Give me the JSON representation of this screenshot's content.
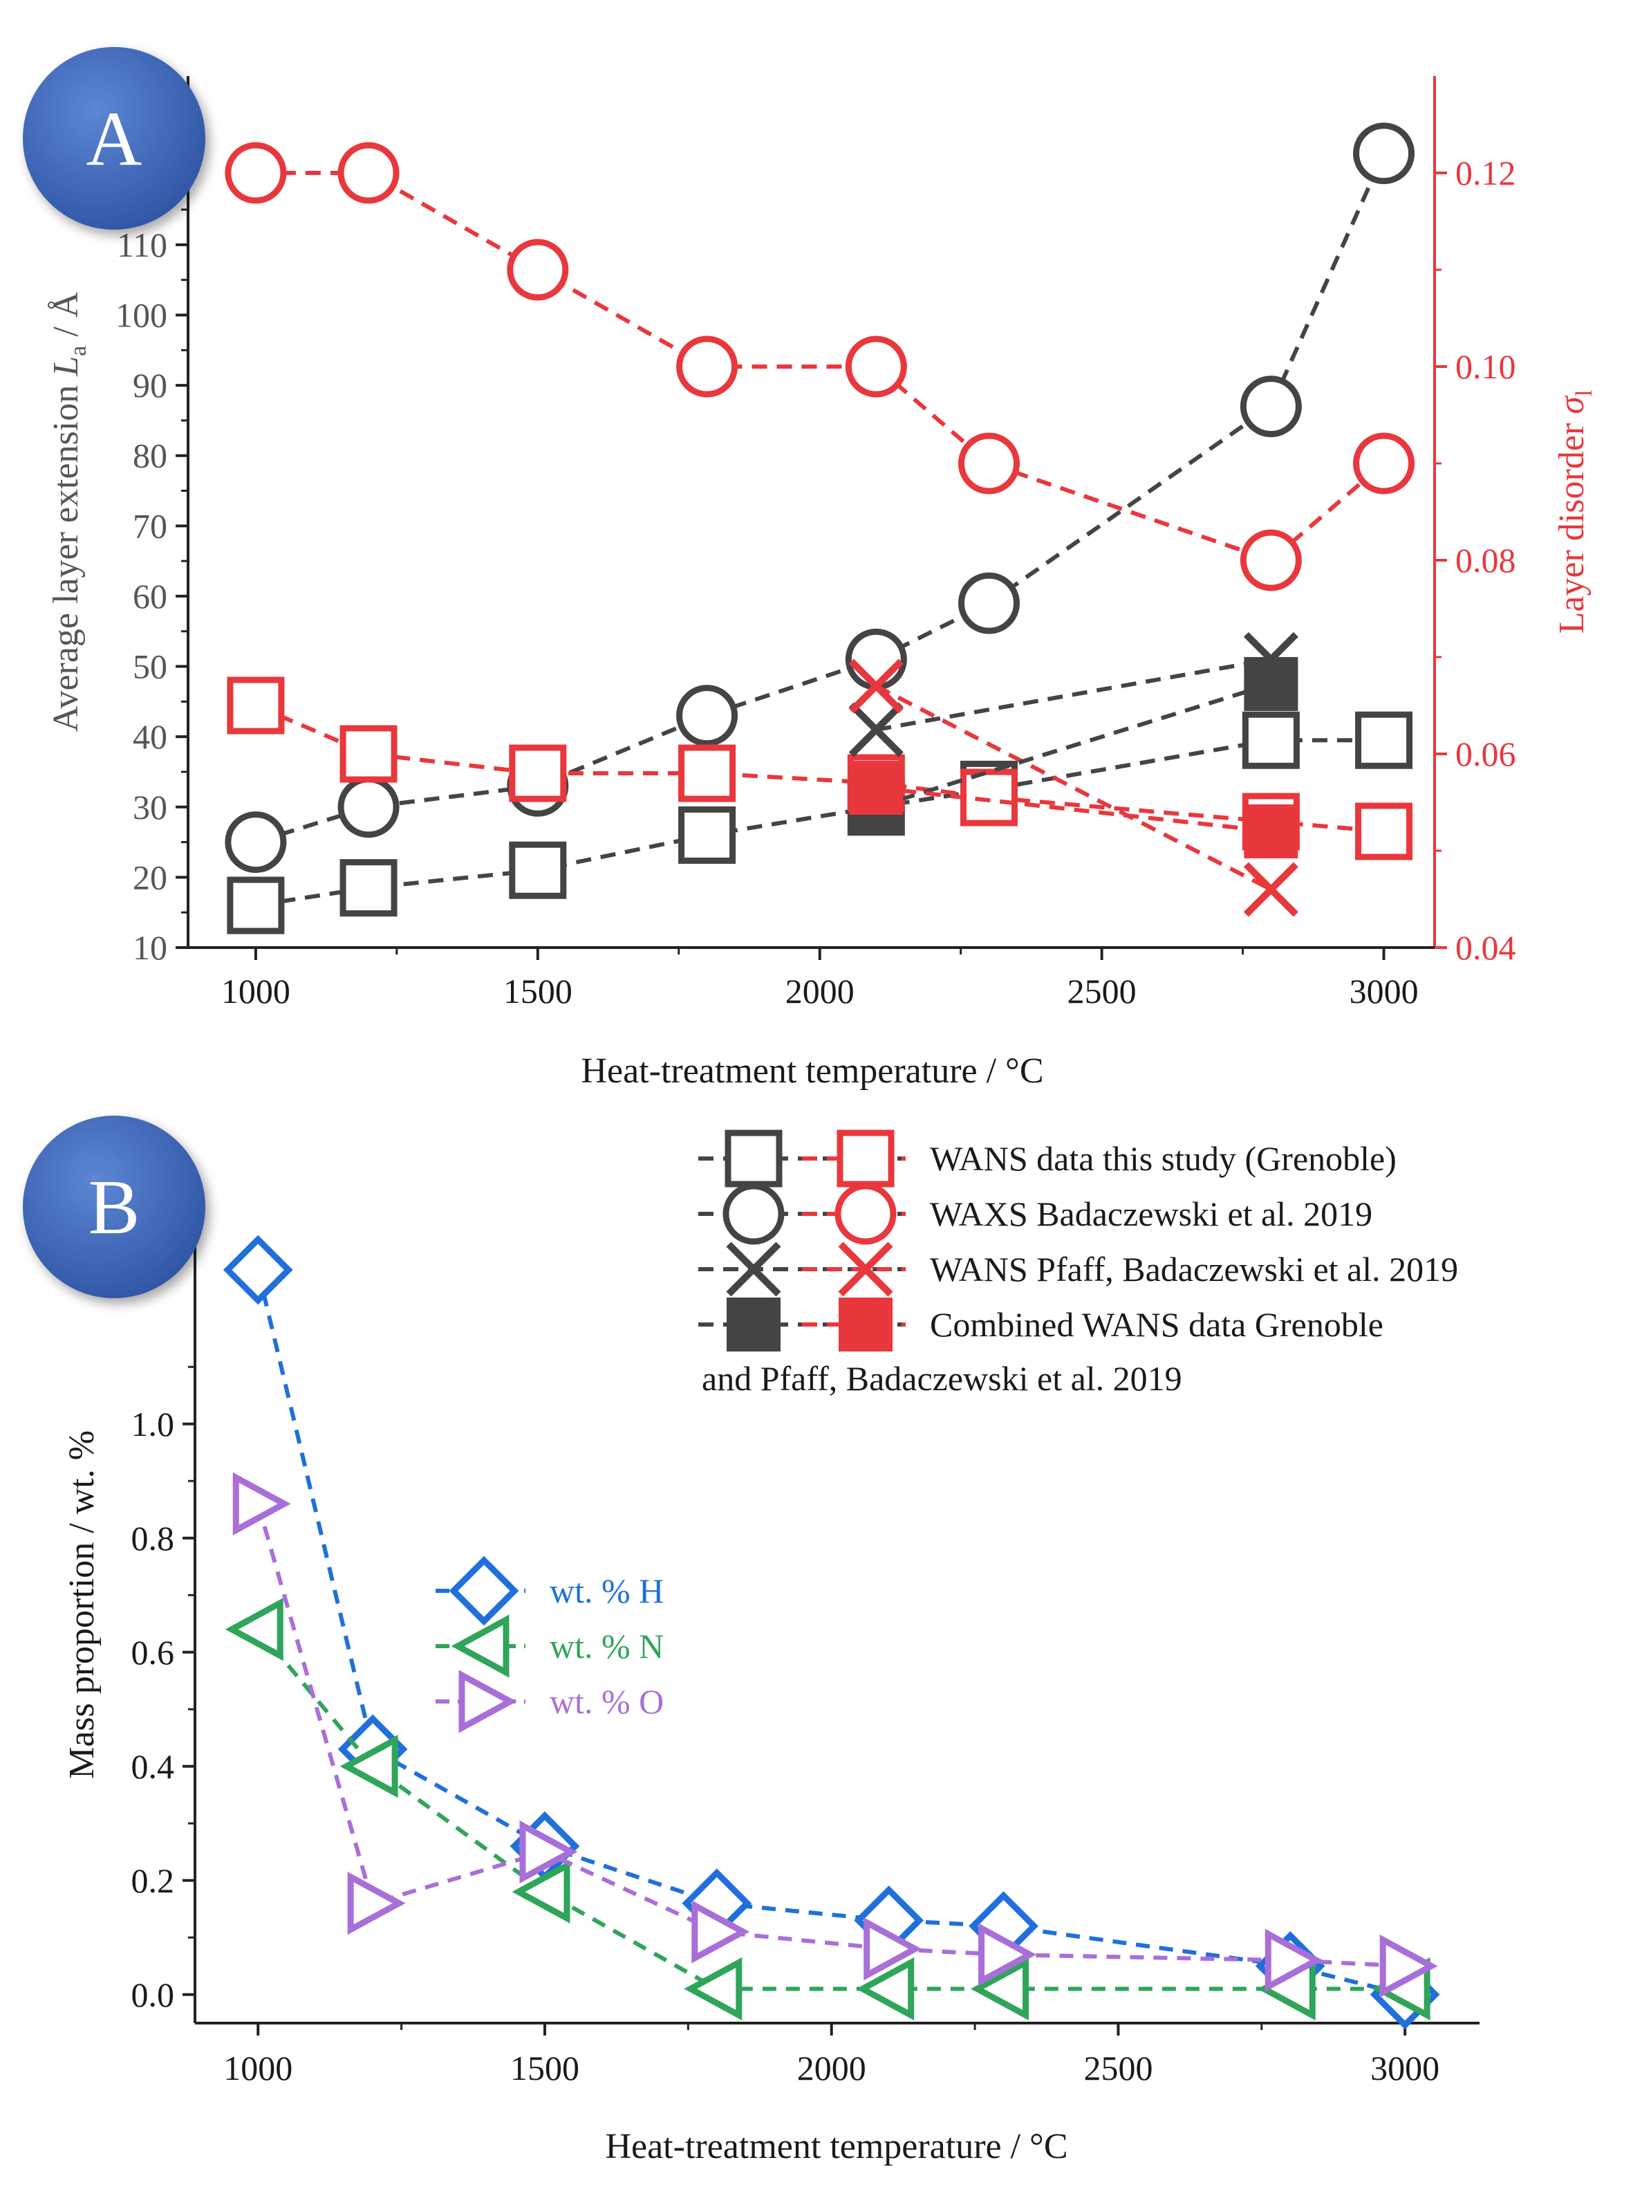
{
  "chart_data": [
    {
      "panel": "A",
      "type": "line",
      "badge": "A",
      "xlabel": "Heat-treatment temperature / °C",
      "ylabel_left_prefix": "Average layer extension ",
      "ylabel_left_sym": "L",
      "ylabel_left_sub": "a",
      "ylabel_left_unit": " / Å",
      "ylabel_right_prefix": "Layer disorder ",
      "ylabel_right_sym": "σ",
      "ylabel_right_sub": "l",
      "xlim": [
        880,
        3090
      ],
      "ylim_left": [
        10,
        134
      ],
      "ylim_right": [
        0.04,
        0.13
      ],
      "xticks": [
        "1000",
        "1500",
        "2000",
        "2500",
        "3000"
      ],
      "xtick_values": [
        1000,
        1500,
        2000,
        2500,
        3000
      ],
      "yticks_left": [
        "10",
        "20",
        "30",
        "40",
        "50",
        "60",
        "70",
        "80",
        "90",
        "100",
        "110"
      ],
      "ytick_left_values": [
        10,
        20,
        30,
        40,
        50,
        60,
        70,
        80,
        90,
        100,
        110
      ],
      "yticks_right": [
        "0.04",
        "0.06",
        "0.08",
        "0.10",
        "0.12"
      ],
      "ytick_right_values": [
        0.04,
        0.06,
        0.08,
        0.1,
        0.12
      ],
      "series": [
        {
          "name": "La WANS data this study (Grenoble)",
          "axis": "left",
          "color": "#444444",
          "marker": "square",
          "x": [
            1000,
            1200,
            1500,
            1800,
            2100,
            2300,
            2800,
            3000
          ],
          "y": [
            16,
            18.5,
            21,
            26,
            30,
            32.5,
            39.5,
            39.5
          ]
        },
        {
          "name": "La WAXS Badaczewski et al. 2019",
          "axis": "left",
          "color": "#444444",
          "marker": "circle",
          "x": [
            1000,
            1200,
            1500,
            1800,
            2100,
            2300,
            2800,
            3000
          ],
          "y": [
            25,
            30,
            33,
            43,
            51,
            59,
            87,
            123
          ]
        },
        {
          "name": "La WANS Pfaff, Badaczewski et al. 2019",
          "axis": "left",
          "color": "#444444",
          "marker": "x",
          "x": [
            2100,
            2800
          ],
          "y": [
            41,
            51
          ]
        },
        {
          "name": "La Combined WANS data",
          "axis": "left",
          "color": "#444444",
          "marker": "filled-square",
          "x": [
            2100,
            2800
          ],
          "y": [
            30,
            47.5
          ]
        },
        {
          "name": "σl WANS data this study (Grenoble)",
          "axis": "right",
          "color": "#e8383d",
          "marker": "square",
          "x": [
            1000,
            1200,
            1500,
            1800,
            2100,
            2300,
            2800,
            3000
          ],
          "y": [
            0.065,
            0.06,
            0.058,
            0.058,
            0.057,
            0.0555,
            0.053,
            0.052
          ]
        },
        {
          "name": "σl WAXS Badaczewski et al. 2019",
          "axis": "right",
          "color": "#e8383d",
          "marker": "circle",
          "x": [
            1000,
            1200,
            1500,
            1800,
            2100,
            2300,
            2800,
            3000
          ],
          "y": [
            0.12,
            0.12,
            0.11,
            0.1,
            0.1,
            0.09,
            0.08,
            0.09
          ]
        },
        {
          "name": "σl WANS Pfaff, Badaczewski et al. 2019",
          "axis": "right",
          "color": "#e8383d",
          "marker": "x",
          "x": [
            2100,
            2800
          ],
          "y": [
            0.067,
            0.046
          ]
        },
        {
          "name": "σl Combined WANS data",
          "axis": "right",
          "color": "#e8383d",
          "marker": "filled-square",
          "x": [
            2100,
            2800
          ],
          "y": [
            0.0565,
            0.052
          ]
        }
      ]
    },
    {
      "panel": "B",
      "type": "line",
      "badge": "B",
      "xlabel": "Heat-treatment temperature / °C",
      "ylabel": "Mass proportion / wt. %",
      "xlim": [
        890,
        3130
      ],
      "ylim": [
        -0.05,
        1.35
      ],
      "xticks": [
        "1000",
        "1500",
        "2000",
        "2500",
        "3000"
      ],
      "xtick_values": [
        1000,
        1500,
        2000,
        2500,
        3000
      ],
      "yticks": [
        "0.0",
        "0.2",
        "0.4",
        "0.6",
        "0.8",
        "1.0"
      ],
      "ytick_values": [
        0.0,
        0.2,
        0.4,
        0.6,
        0.8,
        1.0
      ],
      "series": [
        {
          "name": "wt. % H",
          "color": "#1f6fdc",
          "marker": "diamond",
          "x": [
            1000,
            1200,
            1500,
            1800,
            2100,
            2300,
            2800,
            3000
          ],
          "y": [
            1.27,
            0.43,
            0.26,
            0.16,
            0.13,
            0.12,
            0.05,
            0.0
          ]
        },
        {
          "name": "wt. % N",
          "color": "#2fa55a",
          "marker": "triangle-left",
          "x": [
            1000,
            1200,
            1500,
            1800,
            2100,
            2300,
            2800,
            3000
          ],
          "y": [
            0.64,
            0.4,
            0.18,
            0.01,
            0.01,
            0.01,
            0.01,
            0.01
          ]
        },
        {
          "name": "wt. % O",
          "color": "#a96fd8",
          "marker": "triangle-right",
          "x": [
            1000,
            1200,
            1500,
            1800,
            2100,
            2300,
            2800,
            3000
          ],
          "y": [
            0.86,
            0.16,
            0.25,
            0.11,
            0.08,
            0.07,
            0.06,
            0.05
          ]
        }
      ]
    }
  ],
  "legend_main": {
    "entries": [
      {
        "label": "WANS data this study (Grenoble)",
        "marker": "square"
      },
      {
        "label": "WAXS Badaczewski et al. 2019",
        "marker": "circle"
      },
      {
        "label": "WANS Pfaff, Badaczewski et al. 2019",
        "marker": "x"
      },
      {
        "label": "Combined WANS data Grenoble",
        "marker": "filled-square"
      }
    ],
    "continuation": "and Pfaff, Badaczewski et al. 2019",
    "colors": [
      "#444444",
      "#e8383d"
    ]
  },
  "badge_color": "#3f67b8"
}
